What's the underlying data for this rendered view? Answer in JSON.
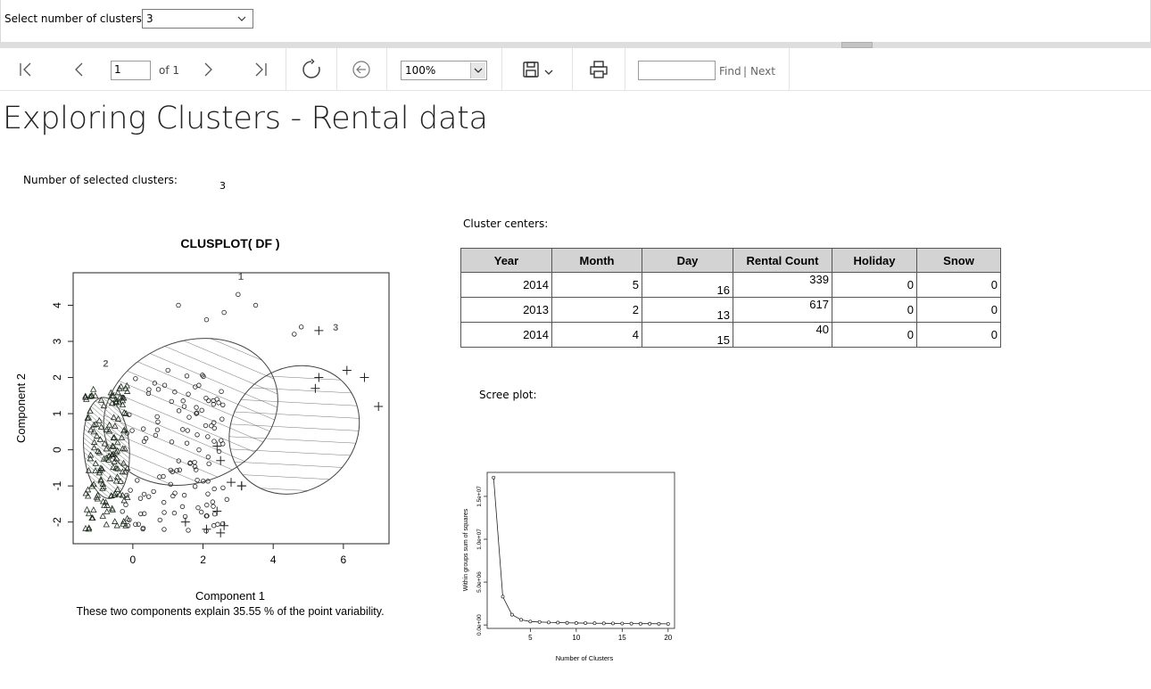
{
  "parameters": {
    "clusters_label": "Select number of clusters:",
    "clusters_value": "3"
  },
  "toolbar": {
    "page_number": "1",
    "page_of": "of 1",
    "zoom": "100%",
    "find_label": "Find",
    "separator": "|",
    "next_label": "Next",
    "icons": [
      "first-page-icon",
      "previous-page-icon",
      "next-page-icon",
      "last-page-icon",
      "refresh-icon",
      "back-icon",
      "save-icon",
      "print-icon"
    ]
  },
  "report": {
    "title": "Exploring Clusters - Rental data",
    "selected_clusters_label": "Number of selected clusters:",
    "selected_clusters_value": "3",
    "cluster_centers_label": "Cluster centers:",
    "scree_label": "Scree plot:"
  },
  "cluster_centers": {
    "columns": [
      "Year",
      "Month",
      "Day",
      "Rental Count",
      "Holiday",
      "Snow"
    ],
    "rows": [
      [
        "2014",
        "5",
        "16",
        "339",
        "0",
        "0"
      ],
      [
        "2013",
        "2",
        "13",
        "617",
        "0",
        "0"
      ],
      [
        "2014",
        "4",
        "15",
        "40",
        "0",
        "0"
      ]
    ]
  },
  "chart_data": [
    {
      "type": "scatter",
      "title": "CLUSPLOT( DF )",
      "xlabel": "Component 1",
      "ylabel": "Component 2",
      "caption": "These two components explain 35.55 % of the point variability.",
      "xticks": [
        0,
        2,
        4,
        6
      ],
      "yticks": [
        -2,
        -1,
        0,
        1,
        2,
        3,
        4
      ],
      "xlim": [
        -1.7,
        7.3
      ],
      "ylim": [
        -2.6,
        4.9
      ],
      "cluster_labels": [
        "1",
        "2",
        "3"
      ]
    },
    {
      "type": "line",
      "xlabel": "Number of Clusters",
      "ylabel": "Within groups sum of squares",
      "xticks": [
        5,
        10,
        15,
        20
      ],
      "yticks": [
        "0.0e+00",
        "5.0e+06",
        "1.0e+07",
        "1.5e+07"
      ],
      "x": [
        1,
        2,
        3,
        4,
        5,
        6,
        7,
        8,
        9,
        10,
        11,
        12,
        13,
        14,
        15,
        16,
        17,
        18,
        19,
        20
      ],
      "y": [
        17200000,
        3300000,
        1200000,
        600000,
        400000,
        350000,
        300000,
        280000,
        250000,
        230000,
        220000,
        200000,
        190000,
        180000,
        170000,
        160000,
        150000,
        150000,
        140000,
        130000
      ],
      "xlim": [
        0.3,
        20.7
      ],
      "ylim": [
        -400000,
        17800000
      ]
    }
  ]
}
